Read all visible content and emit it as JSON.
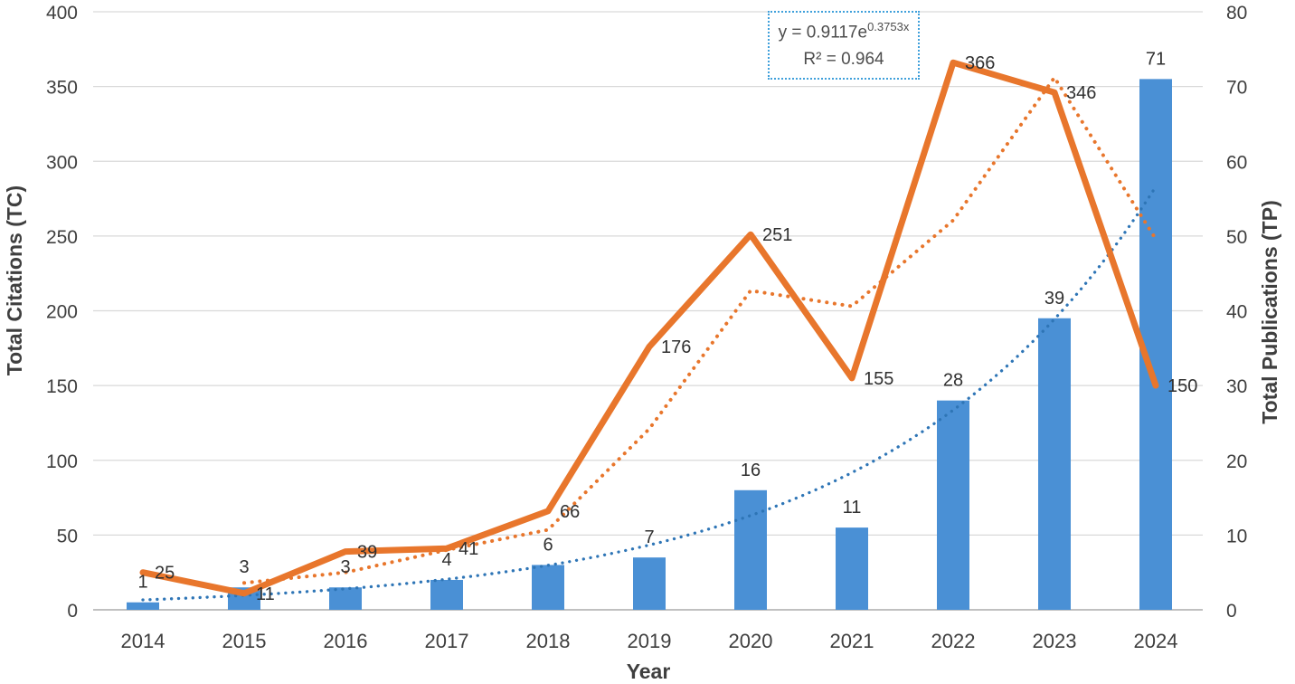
{
  "chart_data": {
    "type": "combo",
    "title": "",
    "x_categories": [
      "2014",
      "2015",
      "2016",
      "2017",
      "2018",
      "2019",
      "2020",
      "2021",
      "2022",
      "2023",
      "2024"
    ],
    "xlabel": "Year",
    "left_axis": {
      "label": "Total Citations (TC)",
      "min": 0,
      "max": 400,
      "step": 50
    },
    "right_axis": {
      "label": "Total Publications (TP)",
      "min": 0,
      "max": 80,
      "step": 10
    },
    "grid": true,
    "legend": "none",
    "series": [
      {
        "name": "Total Publications (TP)",
        "type": "bar",
        "axis": "right",
        "color": "#4a90d5",
        "values": [
          1,
          3,
          3,
          4,
          6,
          7,
          16,
          11,
          28,
          39,
          71
        ],
        "labels_visible": true
      },
      {
        "name": "Total Citations (TC)",
        "type": "line",
        "axis": "left",
        "color": "#e8762c",
        "values": [
          25,
          11,
          39,
          41,
          66,
          176,
          251,
          155,
          366,
          346,
          150
        ],
        "labels_visible": true
      },
      {
        "name": "TC 2-period moving average",
        "type": "dotted_line",
        "axis": "left",
        "color": "#e8762c",
        "values": [
          null,
          18,
          25,
          40,
          53.5,
          121,
          213.5,
          203,
          260.5,
          356,
          248
        ],
        "labels_visible": false
      },
      {
        "name": "TP exponential trendline",
        "type": "dotted_curve",
        "axis": "right",
        "color": "#2e75b6",
        "equation_a": 0.9117,
        "equation_b": 0.3753,
        "labels_visible": false
      }
    ],
    "annotation": {
      "prefix": "y = 0.9117e",
      "exponent": "0.3753x",
      "r_squared": "R² = 0.964",
      "border_color": "#3fa0db"
    }
  },
  "colors": {
    "gridline": "#d9d9d9",
    "axis_line": "#ababab",
    "tick_text": "#3f3f3f",
    "data_label": "#303030"
  }
}
